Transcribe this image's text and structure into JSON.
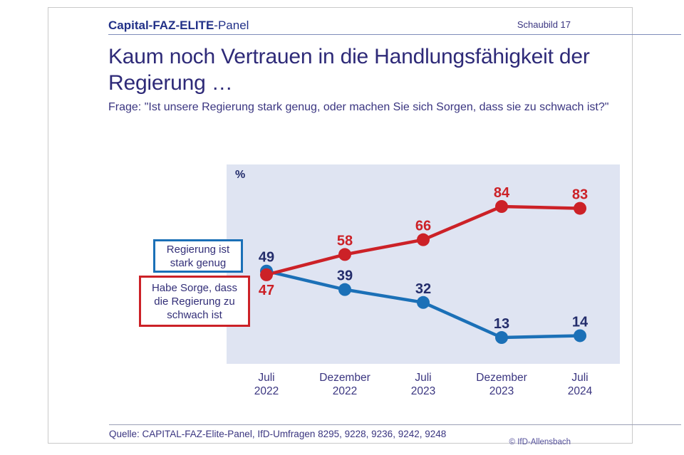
{
  "header": {
    "brand_bold": "Capital-FAZ-ELITE",
    "brand_regular": "-Panel",
    "schaubild": "Schaubild 17"
  },
  "title": {
    "line1": "Kaum noch Vertrauen in die Handlungsfähigkeit der",
    "line2": "Regierung …"
  },
  "question": "Frage: \"Ist unsere Regierung stark genug, oder machen Sie sich Sorgen, dass sie zu schwach ist?\"",
  "chart": {
    "unit_label": "%",
    "legend": [
      {
        "label_lines": [
          "Regierung ist",
          "stark genug"
        ],
        "color": "#1b70b7"
      },
      {
        "label_lines": [
          "Habe Sorge, dass",
          "die Regierung zu",
          "schwach ist"
        ],
        "color": "#cc2127"
      }
    ]
  },
  "chart_data": {
    "type": "line",
    "categories": [
      "Juli 2022",
      "Dezember 2022",
      "Juli 2023",
      "Dezember 2023",
      "Juli 2024"
    ],
    "categories_lines": [
      [
        "Juli",
        "2022"
      ],
      [
        "Dezember",
        "2022"
      ],
      [
        "Juli",
        "2023"
      ],
      [
        "Dezember",
        "2023"
      ],
      [
        "Juli",
        "2024"
      ]
    ],
    "series": [
      {
        "name": "Habe Sorge, dass die Regierung zu schwach ist",
        "id": "worry",
        "color": "#cc2127",
        "label_color": "#cc2127",
        "values": [
          47,
          58,
          66,
          84,
          83
        ],
        "label_positions": [
          "below",
          "above",
          "above",
          "above",
          "above"
        ]
      },
      {
        "name": "Regierung ist stark genug",
        "id": "strong",
        "color": "#1b70b7",
        "label_color": "#232c6b",
        "values": [
          49,
          39,
          32,
          13,
          14
        ],
        "label_positions": [
          "above",
          "above",
          "above",
          "above",
          "above"
        ]
      }
    ],
    "ylabel": "%",
    "ylim": [
      0,
      100
    ],
    "grid": false,
    "legend_position": "left",
    "data_labels": true
  },
  "footer": {
    "source": "Quelle: CAPITAL-FAZ-Elite-Panel, IfD-Umfragen 8295, 9228, 9236, 9242, 9248",
    "copyright": "© IfD-Allensbach"
  },
  "colors": {
    "red": "#cc2127",
    "blue": "#1b70b7",
    "plot_bg": "#dfe4f2",
    "title_text": "#2e2a78",
    "body_text": "#3a3580",
    "navy_label": "#232c6b",
    "header_blue": "#223188",
    "card_border": "#c9c9c9"
  }
}
